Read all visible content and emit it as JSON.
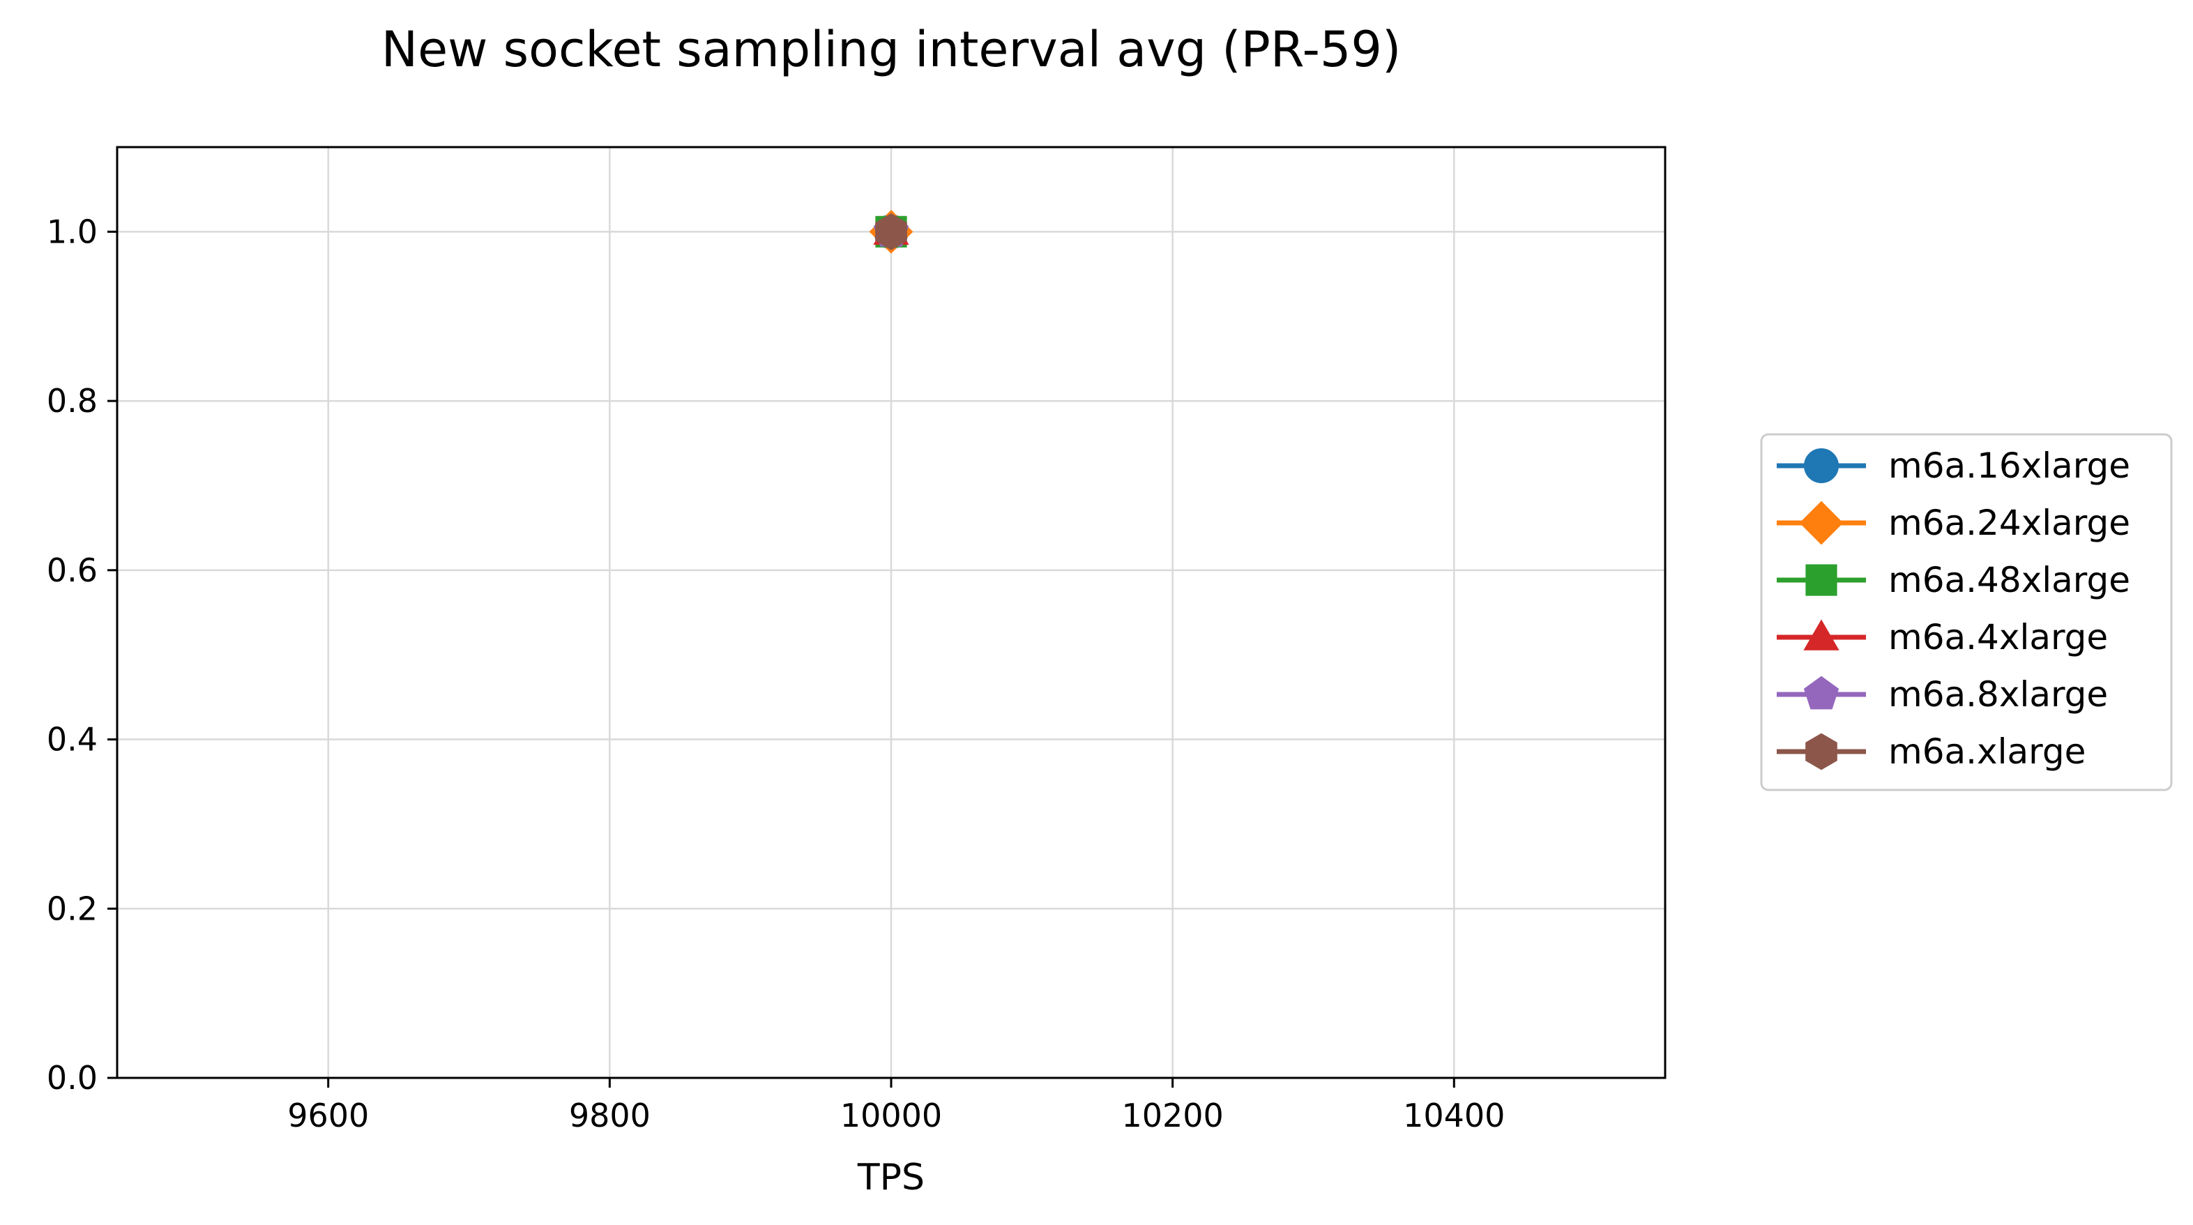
{
  "chart_data": {
    "type": "line",
    "title": "New socket sampling interval avg (PR-59)",
    "xlabel": "TPS",
    "ylabel": "",
    "xlim": [
      9450,
      10550
    ],
    "ylim": [
      0.0,
      1.1
    ],
    "xticks": [
      9600,
      9800,
      10000,
      10200,
      10400
    ],
    "yticks": [
      0.0,
      0.2,
      0.4,
      0.6,
      0.8,
      1.0
    ],
    "xtick_labels": [
      "9600",
      "9800",
      "10000",
      "10200",
      "10400"
    ],
    "ytick_labels": [
      "0.0",
      "0.2",
      "0.4",
      "0.6",
      "0.8",
      "1.0"
    ],
    "grid": true,
    "legend_position": "right",
    "series": [
      {
        "name": "m6a.16xlarge",
        "color": "#1f77b4",
        "marker": "circle",
        "x": [
          10000
        ],
        "y": [
          1.0
        ]
      },
      {
        "name": "m6a.24xlarge",
        "color": "#ff7f0e",
        "marker": "diamond",
        "x": [
          10000
        ],
        "y": [
          1.0
        ]
      },
      {
        "name": "m6a.48xlarge",
        "color": "#2ca02c",
        "marker": "square",
        "x": [
          10000
        ],
        "y": [
          1.0
        ]
      },
      {
        "name": "m6a.4xlarge",
        "color": "#d62728",
        "marker": "triangle",
        "x": [
          10000
        ],
        "y": [
          1.0
        ]
      },
      {
        "name": "m6a.8xlarge",
        "color": "#9467bd",
        "marker": "pentagon",
        "x": [
          10000
        ],
        "y": [
          1.0
        ]
      },
      {
        "name": "m6a.xlarge",
        "color": "#8c564b",
        "marker": "hexagon",
        "x": [
          10000
        ],
        "y": [
          1.0
        ]
      }
    ]
  }
}
